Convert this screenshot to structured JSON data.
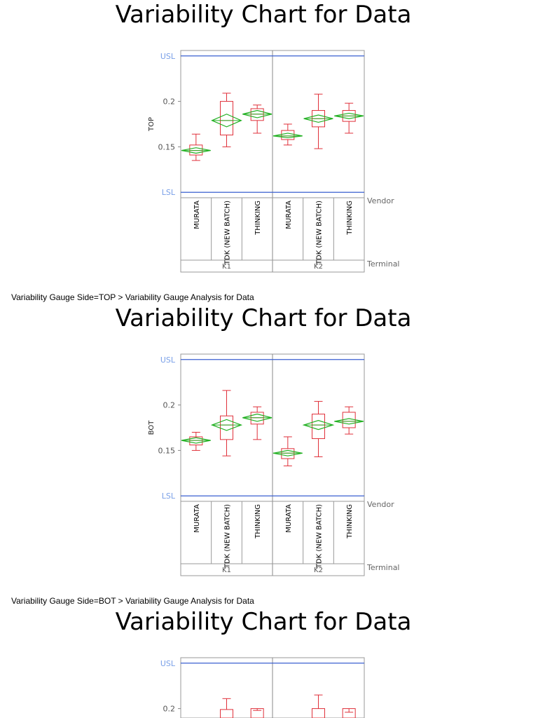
{
  "captions": [
    "Variability Gauge Side=TOP > Variability Gauge Analysis for Data",
    "Variability Gauge Side=BOT > Variability Gauge Analysis for Data"
  ],
  "chart_data": [
    {
      "type": "variability",
      "title": "Variability Chart for Data",
      "y_label": "TOP",
      "ylim": [
        0.094,
        0.256
      ],
      "yticks": [
        0.15,
        0.2
      ],
      "spec_lines": [
        {
          "label": "USL",
          "value": 0.25
        },
        {
          "label": "LSL",
          "value": 0.1
        }
      ],
      "x_levels": [
        "Vendor",
        "Terminal"
      ],
      "terminals": [
        "K1",
        "K2"
      ],
      "vendors": [
        "MURATA",
        "TDK (NEW BATCH)",
        "THINKING"
      ],
      "box_color": "#e0303a",
      "mean_color": "#22b022",
      "spec_color": "#3a5fd0",
      "groups": [
        [
          {
            "min": 0.135,
            "q1": 0.141,
            "median": 0.146,
            "q3": 0.152,
            "max": 0.164,
            "mean": 0.146,
            "mean_ci": [
              0.143,
              0.149
            ]
          },
          {
            "min": 0.15,
            "q1": 0.163,
            "median": 0.179,
            "q3": 0.2,
            "max": 0.209,
            "mean": 0.179,
            "mean_ci": [
              0.172,
              0.186
            ]
          },
          {
            "min": 0.165,
            "q1": 0.179,
            "median": 0.186,
            "q3": 0.192,
            "max": 0.196,
            "mean": 0.186,
            "mean_ci": [
              0.182,
              0.19
            ]
          }
        ],
        [
          {
            "min": 0.152,
            "q1": 0.158,
            "median": 0.162,
            "q3": 0.168,
            "max": 0.175,
            "mean": 0.162,
            "mean_ci": [
              0.16,
              0.165
            ]
          },
          {
            "min": 0.148,
            "q1": 0.172,
            "median": 0.181,
            "q3": 0.19,
            "max": 0.208,
            "mean": 0.181,
            "mean_ci": [
              0.177,
              0.185
            ]
          },
          {
            "min": 0.165,
            "q1": 0.178,
            "median": 0.184,
            "q3": 0.19,
            "max": 0.198,
            "mean": 0.184,
            "mean_ci": [
              0.181,
              0.187
            ]
          }
        ]
      ]
    },
    {
      "type": "variability",
      "title": "Variability Chart for Data",
      "y_label": "BOT",
      "ylim": [
        0.094,
        0.256
      ],
      "yticks": [
        0.15,
        0.2
      ],
      "spec_lines": [
        {
          "label": "USL",
          "value": 0.25
        },
        {
          "label": "LSL",
          "value": 0.1
        }
      ],
      "x_levels": [
        "Vendor",
        "Terminal"
      ],
      "terminals": [
        "K1",
        "K2"
      ],
      "vendors": [
        "MURATA",
        "TDK (NEW BATCH)",
        "THINKING"
      ],
      "box_color": "#e0303a",
      "mean_color": "#22b022",
      "spec_color": "#3a5fd0",
      "groups": [
        [
          {
            "min": 0.15,
            "q1": 0.156,
            "median": 0.161,
            "q3": 0.165,
            "max": 0.17,
            "mean": 0.161,
            "mean_ci": [
              0.158,
              0.164
            ]
          },
          {
            "min": 0.144,
            "q1": 0.162,
            "median": 0.178,
            "q3": 0.188,
            "max": 0.216,
            "mean": 0.178,
            "mean_ci": [
              0.172,
              0.184
            ]
          },
          {
            "min": 0.162,
            "q1": 0.179,
            "median": 0.186,
            "q3": 0.192,
            "max": 0.198,
            "mean": 0.186,
            "mean_ci": [
              0.182,
              0.19
            ]
          }
        ],
        [
          {
            "min": 0.133,
            "q1": 0.141,
            "median": 0.147,
            "q3": 0.152,
            "max": 0.165,
            "mean": 0.147,
            "mean_ci": [
              0.144,
              0.15
            ]
          },
          {
            "min": 0.143,
            "q1": 0.163,
            "median": 0.178,
            "q3": 0.19,
            "max": 0.204,
            "mean": 0.178,
            "mean_ci": [
              0.173,
              0.183
            ]
          },
          {
            "min": 0.168,
            "q1": 0.175,
            "median": 0.182,
            "q3": 0.192,
            "max": 0.198,
            "mean": 0.182,
            "mean_ci": [
              0.179,
              0.185
            ]
          }
        ]
      ]
    },
    {
      "type": "variability",
      "title": "Variability Chart for Data",
      "ylim": [
        0.094,
        0.256
      ],
      "yticks": [
        0.2
      ],
      "spec_lines": [
        {
          "label": "USL",
          "value": 0.25
        }
      ],
      "box_color": "#e0303a",
      "spec_color": "#3a5fd0",
      "groups": [
        [
          {},
          {
            "q3": 0.199,
            "max": 0.211
          },
          {
            "q3": 0.2,
            "max": 0.198
          }
        ],
        [
          {},
          {
            "q3": 0.2,
            "max": 0.215
          },
          {
            "q3": 0.2,
            "max": 0.196
          }
        ]
      ]
    }
  ]
}
